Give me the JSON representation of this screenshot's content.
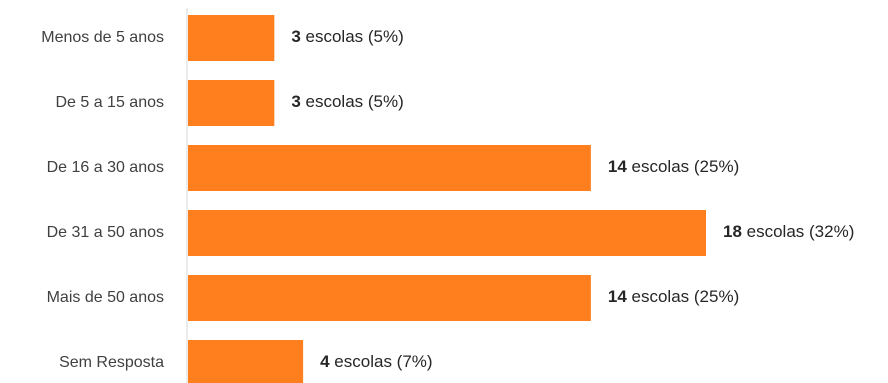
{
  "chart_data": {
    "type": "bar",
    "orientation": "horizontal",
    "title": "",
    "xlabel": "",
    "ylabel": "",
    "categories": [
      "Menos de 5 anos",
      "De 5 a 15 anos",
      "De 16 a 30 anos",
      "De 31 a 50 anos",
      "Mais de 50 anos",
      "Sem Resposta"
    ],
    "values": [
      3,
      3,
      14,
      18,
      14,
      4
    ],
    "labels": [
      {
        "count": "3",
        "text": " escolas (5%)"
      },
      {
        "count": "3",
        "text": " escolas (5%)"
      },
      {
        "count": "14",
        "text": " escolas (25%)"
      },
      {
        "count": "18",
        "text": " escolas (32%)"
      },
      {
        "count": "14",
        "text": " escolas (25%)"
      },
      {
        "count": "4",
        "text": " escolas (7%)"
      }
    ],
    "xlim": [
      0,
      18
    ],
    "grid": false,
    "colors": {
      "bar": "#FF7F1F",
      "axis": "#D9D9D9"
    }
  }
}
